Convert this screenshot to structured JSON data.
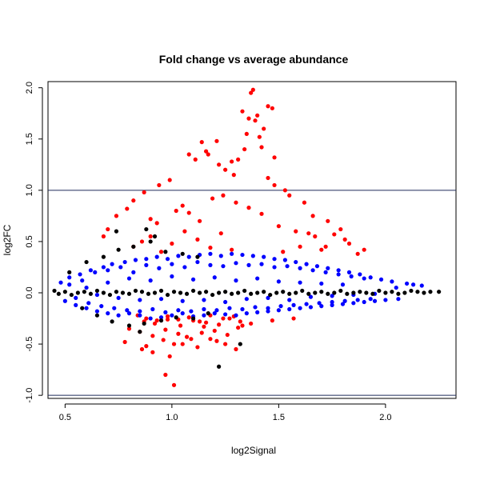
{
  "chart_data": {
    "type": "scatter",
    "title": "Fold change vs average abundance",
    "xlabel": "log2Signal",
    "ylabel": "log2FC",
    "xlim": [
      0.42,
      2.33
    ],
    "ylim": [
      -1.03,
      2.06
    ],
    "xticks": [
      0.5,
      1.0,
      1.5,
      2.0
    ],
    "xtick_labels": [
      "0.5",
      "1.0",
      "1.5",
      "2.0"
    ],
    "yticks": [
      -1.0,
      -0.5,
      0.0,
      0.5,
      1.0,
      1.5,
      2.0
    ],
    "ytick_labels": [
      "-1.0",
      "-0.5",
      "0.0",
      "0.5",
      "1.0",
      "1.5",
      "2.0"
    ],
    "hlines": [
      1.0,
      -1.0
    ],
    "grid": false,
    "legend": "none",
    "colors": {
      "black": "#000000",
      "blue": "#0000ff",
      "red": "#ff0000",
      "line": "#1f2a5a"
    },
    "series": [
      {
        "color": "red",
        "x": [
          1.38,
          1.37,
          1.45,
          1.47,
          1.33,
          1.4,
          1.36,
          1.39,
          1.43,
          1.41,
          1.42,
          1.35,
          1.34,
          1.48,
          1.31,
          1.28,
          1.21,
          1.14,
          1.16,
          1.17,
          1.08,
          1.11,
          1.22,
          1.25,
          1.29,
          1.45,
          1.48,
          1.53,
          1.55,
          1.62,
          1.66,
          1.73,
          1.79,
          1.76,
          1.81,
          1.83,
          1.72,
          1.7,
          0.99,
          0.94,
          0.87,
          0.82,
          0.79,
          0.74,
          0.7,
          0.68,
          0.9,
          0.93,
          1.02,
          1.05,
          1.08,
          1.13,
          1.19,
          1.24,
          1.3,
          1.36,
          1.42,
          1.5,
          1.58,
          1.64,
          0.82,
          0.86,
          0.9,
          0.95,
          1.0,
          1.06,
          1.12,
          1.18,
          1.23,
          1.28,
          0.87,
          0.92,
          0.98,
          1.04,
          1.1,
          1.16,
          1.22,
          1.27,
          1.32,
          1.37,
          0.8,
          0.85,
          0.91,
          0.97,
          1.03,
          1.09,
          1.15,
          1.2,
          1.26,
          1.31,
          0.78,
          0.88,
          0.96,
          1.01,
          1.07,
          1.14,
          1.21,
          1.33,
          1.47,
          1.57,
          0.84,
          0.88,
          0.93,
          0.98,
          1.03,
          1.08,
          1.13,
          1.18,
          1.24,
          1.29,
          0.86,
          0.91,
          0.99,
          1.05,
          1.12,
          0.97,
          1.01,
          1.25,
          1.18,
          1.3,
          1.52,
          1.6,
          1.67,
          1.87,
          1.9
        ],
        "y": [
          1.98,
          1.95,
          1.82,
          1.8,
          1.77,
          1.73,
          1.7,
          1.68,
          1.6,
          1.52,
          1.42,
          1.55,
          1.4,
          1.32,
          1.3,
          1.28,
          1.48,
          1.47,
          1.38,
          1.35,
          1.35,
          1.3,
          1.25,
          1.2,
          1.15,
          1.12,
          1.05,
          1.0,
          0.95,
          0.88,
          0.75,
          0.7,
          0.62,
          0.57,
          0.52,
          0.48,
          0.45,
          0.42,
          1.1,
          1.05,
          0.98,
          0.9,
          0.82,
          0.75,
          0.62,
          0.55,
          0.72,
          0.68,
          0.8,
          0.85,
          0.78,
          0.7,
          0.92,
          0.95,
          0.88,
          0.83,
          0.77,
          0.65,
          0.6,
          0.58,
          0.45,
          0.5,
          0.55,
          0.4,
          0.48,
          0.6,
          0.52,
          0.44,
          0.58,
          0.42,
          -0.28,
          -0.3,
          -0.26,
          -0.32,
          -0.27,
          -0.29,
          -0.31,
          -0.25,
          -0.28,
          -0.3,
          -0.35,
          -0.38,
          -0.42,
          -0.36,
          -0.4,
          -0.45,
          -0.33,
          -0.37,
          -0.41,
          -0.34,
          -0.48,
          -0.52,
          -0.46,
          -0.5,
          -0.43,
          -0.39,
          -0.47,
          -0.32,
          -0.27,
          -0.25,
          -0.22,
          -0.25,
          -0.27,
          -0.23,
          -0.26,
          -0.24,
          -0.28,
          -0.22,
          -0.25,
          -0.23,
          -0.55,
          -0.58,
          -0.62,
          -0.5,
          -0.53,
          -0.8,
          -0.9,
          -0.5,
          -0.45,
          -0.55,
          0.4,
          0.45,
          0.55,
          0.38,
          0.42
        ]
      },
      {
        "color": "blue",
        "x": [
          0.48,
          0.5,
          0.52,
          0.55,
          0.57,
          0.6,
          0.62,
          0.65,
          0.68,
          0.7,
          0.72,
          0.75,
          0.78,
          0.8,
          0.83,
          0.85,
          0.88,
          0.9,
          0.93,
          0.95,
          0.98,
          1.0,
          1.03,
          1.05,
          1.08,
          1.1,
          1.13,
          1.15,
          1.18,
          1.2,
          1.23,
          1.25,
          1.28,
          1.3,
          1.33,
          1.35,
          1.38,
          1.4,
          1.43,
          1.45,
          1.48,
          1.5,
          1.53,
          1.55,
          1.58,
          1.6,
          1.63,
          1.65,
          1.68,
          1.7,
          1.73,
          1.75,
          1.78,
          1.8,
          1.83,
          1.85,
          1.88,
          1.9,
          1.93,
          1.95,
          1.98,
          2.0,
          2.03,
          2.06,
          2.1,
          2.13,
          2.17,
          0.52,
          0.58,
          0.64,
          0.7,
          0.76,
          0.82,
          0.88,
          0.94,
          1.0,
          1.06,
          1.12,
          1.18,
          1.24,
          1.3,
          1.36,
          1.42,
          1.48,
          1.54,
          1.6,
          1.66,
          1.72,
          1.78,
          1.84,
          1.9,
          0.55,
          0.61,
          0.67,
          0.73,
          0.79,
          0.85,
          0.91,
          0.97,
          1.03,
          1.09,
          1.15,
          1.21,
          1.27,
          1.33,
          1.39,
          1.45,
          1.51,
          1.57,
          1.63,
          1.69,
          1.75,
          1.81,
          1.87,
          1.93,
          0.6,
          0.7,
          0.8,
          0.9,
          1.0,
          1.1,
          1.2,
          1.3,
          1.4,
          1.5,
          1.6,
          1.7,
          1.8,
          0.65,
          0.75,
          0.85,
          0.95,
          1.05,
          1.15,
          1.25,
          1.35,
          1.45,
          1.55,
          1.65,
          1.75,
          1.85,
          1.95,
          2.05
        ],
        "y": [
          0.1,
          -0.08,
          0.15,
          -0.12,
          0.18,
          -0.15,
          0.22,
          -0.18,
          0.25,
          -0.2,
          0.28,
          -0.22,
          0.3,
          -0.2,
          0.32,
          -0.22,
          0.33,
          -0.25,
          0.35,
          -0.24,
          0.33,
          -0.22,
          0.36,
          -0.2,
          0.35,
          -0.23,
          0.37,
          -0.22,
          0.38,
          -0.2,
          0.36,
          -0.21,
          0.38,
          -0.22,
          0.37,
          -0.2,
          0.36,
          -0.19,
          0.35,
          -0.18,
          0.33,
          -0.17,
          0.32,
          -0.16,
          0.3,
          -0.15,
          0.28,
          -0.14,
          0.26,
          -0.13,
          0.24,
          -0.12,
          0.22,
          -0.11,
          0.2,
          -0.1,
          0.18,
          -0.09,
          0.15,
          -0.08,
          0.13,
          -0.07,
          0.11,
          -0.06,
          0.09,
          0.08,
          0.07,
          0.08,
          0.12,
          0.2,
          0.22,
          0.25,
          0.2,
          0.27,
          0.24,
          0.28,
          0.25,
          0.3,
          0.27,
          0.26,
          0.29,
          0.27,
          0.28,
          0.25,
          0.26,
          0.24,
          0.22,
          0.2,
          0.18,
          0.16,
          0.14,
          -0.05,
          -0.1,
          -0.13,
          -0.15,
          -0.17,
          -0.18,
          -0.16,
          -0.19,
          -0.17,
          -0.18,
          -0.16,
          -0.17,
          -0.15,
          -0.16,
          -0.14,
          -0.15,
          -0.13,
          -0.12,
          -0.11,
          -0.1,
          -0.09,
          -0.08,
          -0.07,
          -0.06,
          0.05,
          0.1,
          0.14,
          0.12,
          0.16,
          0.13,
          0.15,
          0.12,
          0.14,
          0.11,
          0.1,
          0.09,
          0.08,
          -0.02,
          -0.05,
          -0.07,
          -0.06,
          -0.08,
          -0.07,
          -0.09,
          -0.06,
          -0.05,
          -0.07,
          -0.04,
          -0.03,
          -0.02,
          -0.01,
          0.05
        ]
      },
      {
        "color": "black",
        "x": [
          0.45,
          0.47,
          0.5,
          0.53,
          0.56,
          0.59,
          0.62,
          0.65,
          0.68,
          0.71,
          0.74,
          0.77,
          0.8,
          0.83,
          0.86,
          0.89,
          0.92,
          0.95,
          0.98,
          1.01,
          1.04,
          1.07,
          1.1,
          1.13,
          1.16,
          1.19,
          1.22,
          1.25,
          1.28,
          1.31,
          1.34,
          1.37,
          1.4,
          1.43,
          1.46,
          1.49,
          1.52,
          1.55,
          1.58,
          1.61,
          1.64,
          1.67,
          1.7,
          1.73,
          1.76,
          1.79,
          1.82,
          1.85,
          1.88,
          1.91,
          1.94,
          1.97,
          2.0,
          2.03,
          2.06,
          2.09,
          2.12,
          2.15,
          2.18,
          2.21,
          2.25,
          0.52,
          0.6,
          0.68,
          0.75,
          0.82,
          0.9,
          0.97,
          1.05,
          1.12,
          0.58,
          0.65,
          0.72,
          0.8,
          0.87,
          0.95,
          1.02,
          1.1,
          1.17,
          0.74,
          0.88,
          0.92,
          0.85,
          1.22,
          1.32
        ],
        "y": [
          0.02,
          -0.01,
          0.01,
          -0.02,
          0.0,
          0.01,
          -0.01,
          0.02,
          0.0,
          -0.02,
          0.01,
          0.0,
          -0.01,
          0.02,
          0.01,
          -0.01,
          0.0,
          0.02,
          -0.02,
          0.01,
          0.0,
          -0.01,
          0.02,
          0.0,
          0.01,
          -0.02,
          0.0,
          0.01,
          -0.01,
          0.0,
          0.02,
          -0.01,
          0.0,
          0.01,
          -0.02,
          0.0,
          0.01,
          -0.01,
          0.0,
          0.02,
          -0.01,
          0.0,
          0.01,
          -0.01,
          0.0,
          0.02,
          -0.01,
          0.0,
          0.01,
          0.0,
          -0.01,
          0.02,
          0.0,
          0.01,
          -0.01,
          0.0,
          0.02,
          0.01,
          0.0,
          0.01,
          0.01,
          0.2,
          0.3,
          0.35,
          0.42,
          0.45,
          0.5,
          0.4,
          0.38,
          0.35,
          -0.15,
          -0.22,
          -0.28,
          -0.32,
          -0.3,
          -0.27,
          -0.24,
          -0.25,
          -0.2,
          0.6,
          0.62,
          0.55,
          -0.38,
          -0.72,
          -0.5
        ]
      }
    ]
  }
}
